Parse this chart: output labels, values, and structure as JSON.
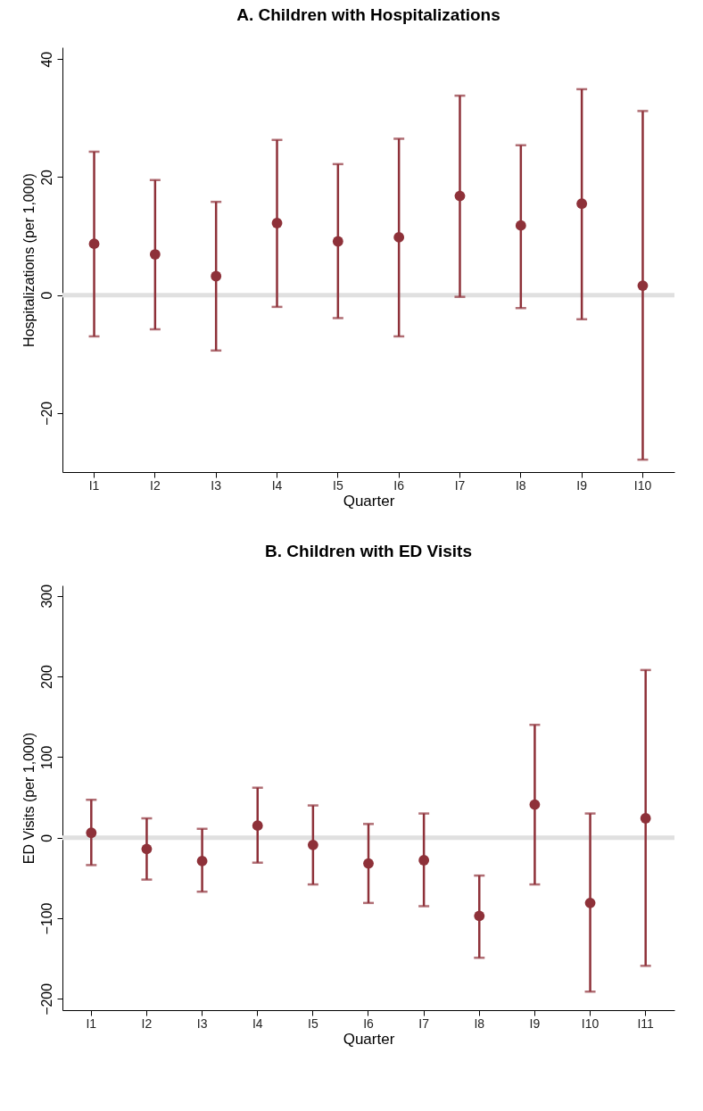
{
  "chart_data": [
    {
      "type": "scatter",
      "title": "A.    Children with Hospitalizations",
      "xlabel": "Quarter",
      "ylabel": "Hospitalizations (per 1,000)",
      "categories": [
        "I1",
        "I2",
        "I3",
        "I4",
        "I5",
        "I6",
        "I7",
        "I8",
        "I9",
        "I10"
      ],
      "color": "#8e3139",
      "marker": "circle",
      "values": [
        8.7,
        6.9,
        3.2,
        12.2,
        9.1,
        9.8,
        16.8,
        11.8,
        15.5,
        1.6
      ],
      "errors": [
        [
          -7.0,
          24.3
        ],
        [
          -5.8,
          19.5
        ],
        [
          -9.4,
          15.8
        ],
        [
          -2.0,
          26.3
        ],
        [
          -3.9,
          22.2
        ],
        [
          -7.0,
          26.5
        ],
        [
          -0.3,
          33.8
        ],
        [
          -2.2,
          25.4
        ],
        [
          -4.1,
          34.9
        ],
        [
          -27.9,
          31.2
        ]
      ],
      "ylim": [
        -30,
        42
      ],
      "yticks": [
        -20,
        0,
        20,
        40
      ],
      "ref_lines": [
        {
          "axis": "y",
          "value": 0,
          "color": "#e0e0e0"
        }
      ]
    },
    {
      "type": "scatter",
      "title": "B.    Children with ED Visits",
      "xlabel": "Quarter",
      "ylabel": "ED Visits (per 1,000)",
      "categories": [
        "I1",
        "I2",
        "I3",
        "I4",
        "I5",
        "I6",
        "I7",
        "I8",
        "I9",
        "I10",
        "I11"
      ],
      "color": "#8e3139",
      "marker": "circle",
      "values": [
        6,
        -14,
        -29,
        15,
        -9,
        -32,
        -28,
        -97,
        41,
        -81,
        24
      ],
      "errors": [
        [
          -34,
          47
        ],
        [
          -52,
          24
        ],
        [
          -67,
          11
        ],
        [
          -31,
          62
        ],
        [
          -58,
          40
        ],
        [
          -81,
          17
        ],
        [
          -85,
          30
        ],
        [
          -149,
          -47
        ],
        [
          -58,
          140
        ],
        [
          -191,
          30
        ],
        [
          -159,
          208
        ]
      ],
      "ylim": [
        -214,
        313
      ],
      "yticks": [
        -200,
        -100,
        0,
        100,
        200,
        300
      ],
      "ref_lines": [
        {
          "axis": "y",
          "value": 0,
          "color": "#e0e0e0"
        }
      ]
    }
  ]
}
